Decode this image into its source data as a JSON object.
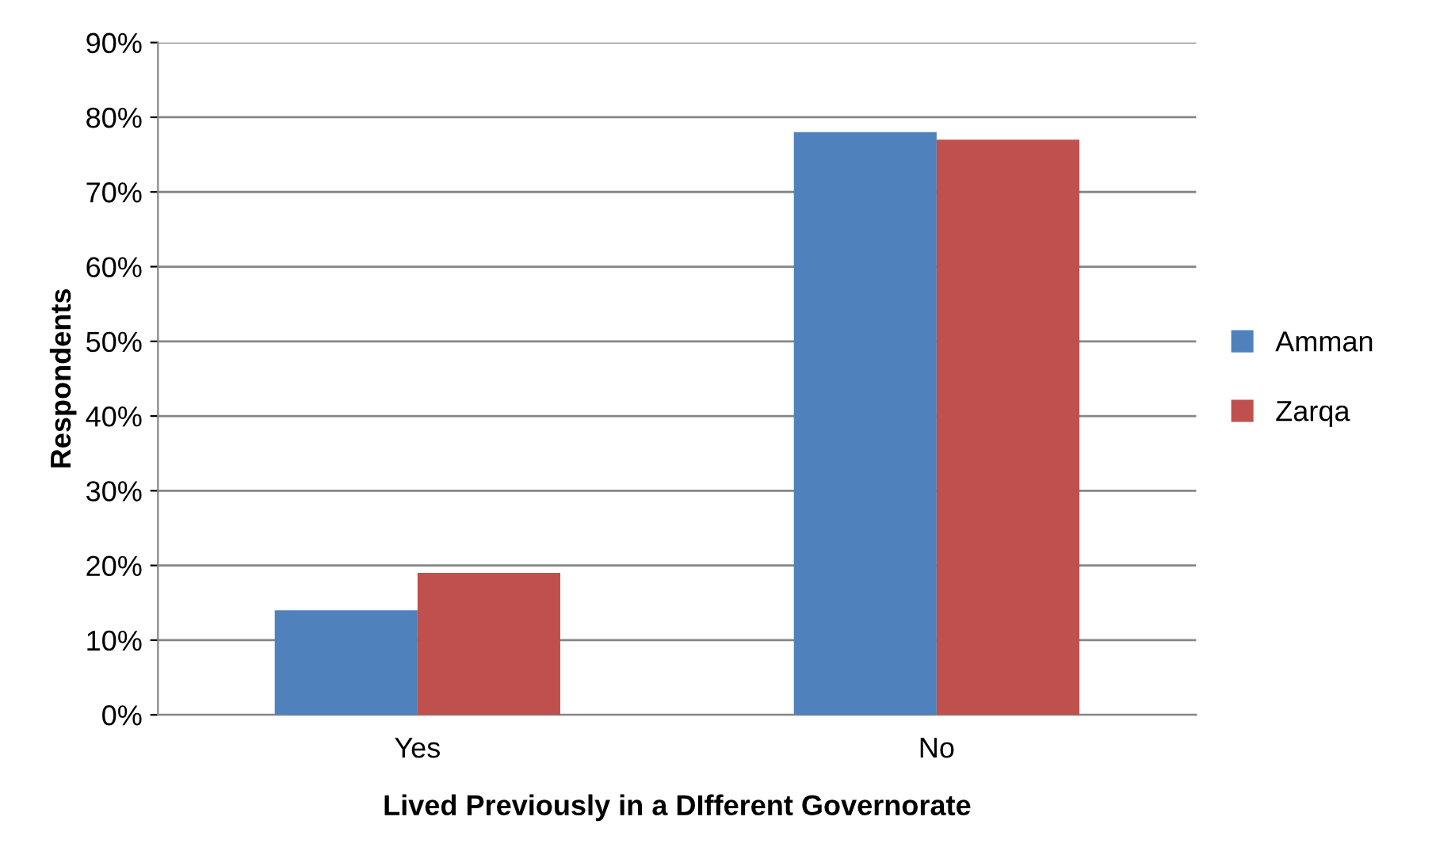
{
  "chart_data": {
    "type": "bar",
    "xlabel": "Lived Previously in a DIfferent Governorate",
    "ylabel": "Respondents",
    "categories": [
      "Yes",
      "No"
    ],
    "series": [
      {
        "name": "Amman",
        "color": "#4f81bd",
        "values": [
          14,
          78
        ]
      },
      {
        "name": "Zarqa",
        "color": "#c0504d",
        "values": [
          19,
          77
        ]
      }
    ],
    "ylim": [
      0,
      90
    ],
    "yticks": [
      {
        "value": 0,
        "label": "0%"
      },
      {
        "value": 10,
        "label": "10%"
      },
      {
        "value": 20,
        "label": "20%"
      },
      {
        "value": 30,
        "label": "30%"
      },
      {
        "value": 40,
        "label": "40%"
      },
      {
        "value": 50,
        "label": "50%"
      },
      {
        "value": 60,
        "label": "60%"
      },
      {
        "value": 70,
        "label": "70%"
      },
      {
        "value": 80,
        "label": "80%"
      },
      {
        "value": 90,
        "label": "90%"
      }
    ],
    "grid": "y",
    "legend": "right"
  }
}
